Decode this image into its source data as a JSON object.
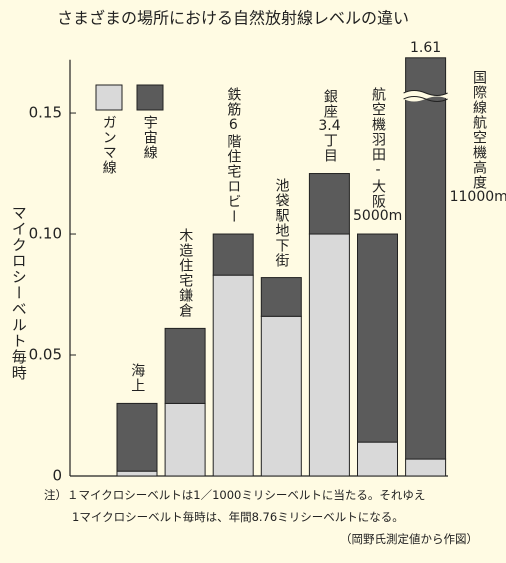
{
  "chart_data": {
    "type": "stacked_bar",
    "title": "さまざまの場所における自然放射線レベルの違い",
    "y_label": "マイクロシーベルト毎時",
    "categories": [
      [
        "海上"
      ],
      [
        "木造住宅鎌倉"
      ],
      [
        "鉄筋6階住宅ロビー"
      ],
      [
        "池袋駅地下街"
      ],
      [
        "銀座",
        "3.4",
        "丁目"
      ],
      [
        "航空機羽田-大阪",
        "5000m"
      ],
      [
        "国際線航空機高度",
        "11000m"
      ]
    ],
    "series": [
      {
        "name": "ガンマ線",
        "color": "#d9d9d9",
        "values": [
          0.002,
          0.03,
          0.083,
          0.066,
          0.1,
          0.014,
          0.007
        ]
      },
      {
        "name": "宇宙線",
        "color": "#5b5b5b",
        "values": [
          0.028,
          0.031,
          0.017,
          0.016,
          0.025,
          0.086,
          1.603
        ]
      }
    ],
    "annotations": [
      {
        "category_index": 6,
        "text": "1.61"
      }
    ],
    "axis_break": true,
    "ylim": [
      0,
      0.172
    ],
    "yticks": [
      0,
      0.05,
      {
        "value": 0.1,
        "label": "0.10"
      },
      0.15
    ],
    "notes": [
      "注）１マイクロシーベルトは1／1000ミリシーベルトに当たる。それゆえ",
      "1マイクロシーベルト毎時は、年間8.76ミリシーベルトになる。",
      "（岡野氏測定値から作図）"
    ]
  }
}
